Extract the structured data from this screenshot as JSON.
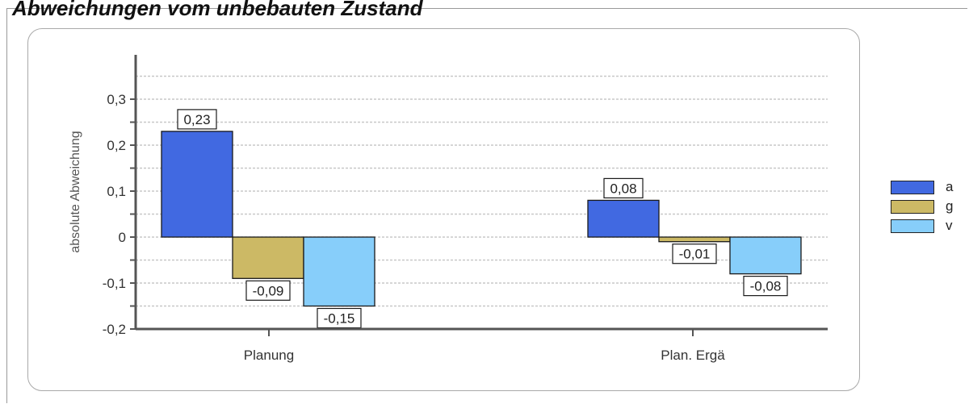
{
  "title": "Abweichungen vom unbebauten Zustand",
  "chart_data": {
    "type": "bar",
    "ylabel": "absolute Abweichung",
    "ylim": [
      -0.2,
      0.3
    ],
    "yticks": [
      "-0,2",
      "-0,1",
      "0",
      "0,1",
      "0,2",
      "0,3"
    ],
    "categories": [
      "Planung",
      "Plan. Ergä"
    ],
    "series": [
      {
        "name": "a",
        "color": "#4169e1",
        "values": [
          0.23,
          0.08
        ],
        "labels": [
          "0,23",
          "0,08"
        ]
      },
      {
        "name": "g",
        "color": "#ccb965",
        "values": [
          -0.09,
          -0.01
        ],
        "labels": [
          "-0,09",
          "-0,01"
        ]
      },
      {
        "name": "v",
        "color": "#87cefa",
        "values": [
          -0.15,
          -0.08
        ],
        "labels": [
          "-0,15",
          "-0,08"
        ]
      }
    ],
    "grid": true,
    "legend": "right"
  }
}
